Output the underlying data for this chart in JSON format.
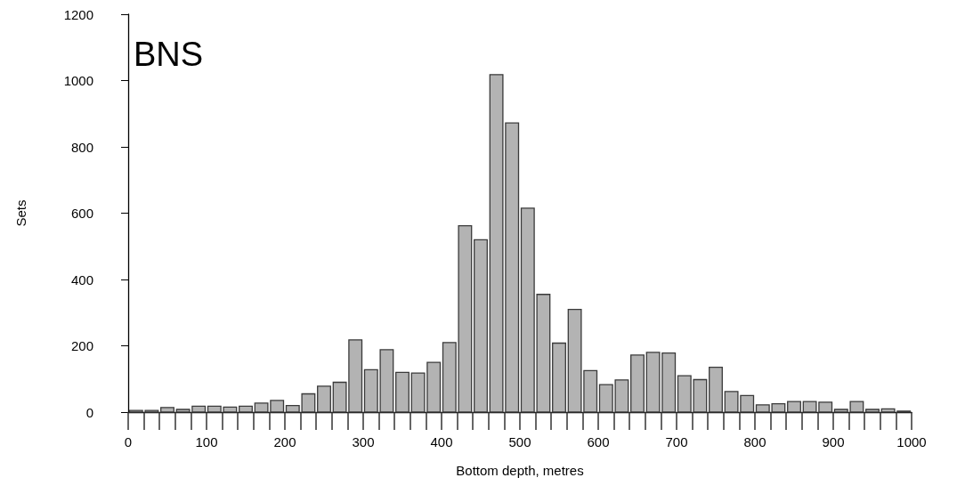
{
  "chart_data": {
    "type": "histogram",
    "xlabel": "Bottom depth, metres",
    "ylabel": "Sets",
    "annotations": [
      "BNS"
    ],
    "bins": [
      0,
      20,
      40,
      60,
      80,
      100,
      120,
      140,
      160,
      180,
      200,
      220,
      240,
      260,
      280,
      300,
      320,
      340,
      360,
      380,
      400,
      420,
      440,
      460,
      480,
      500,
      520,
      540,
      560,
      580,
      600,
      620,
      640,
      660,
      680,
      700,
      720,
      740,
      760,
      780,
      800,
      820,
      840,
      860,
      880,
      900,
      920,
      940,
      960,
      980,
      1000
    ],
    "values": [
      5,
      5,
      14,
      8,
      18,
      18,
      15,
      18,
      27,
      35,
      20,
      55,
      78,
      90,
      218,
      128,
      188,
      120,
      118,
      150,
      210,
      562,
      520,
      1018,
      872,
      615,
      355,
      208,
      310,
      125,
      83,
      97,
      172,
      180,
      178,
      110,
      98,
      135,
      62,
      50,
      22,
      25,
      32,
      32,
      30,
      8,
      32,
      8,
      10,
      3
    ],
    "color": "#b3b3b3",
    "xlim": [
      0,
      1000
    ],
    "xticks": [
      0,
      100,
      200,
      300,
      400,
      500,
      600,
      700,
      800,
      900,
      1000
    ],
    "ylim": [
      0,
      1200
    ],
    "yticks": [
      0,
      200,
      400,
      600,
      800,
      1000,
      1200
    ],
    "grid": false
  }
}
